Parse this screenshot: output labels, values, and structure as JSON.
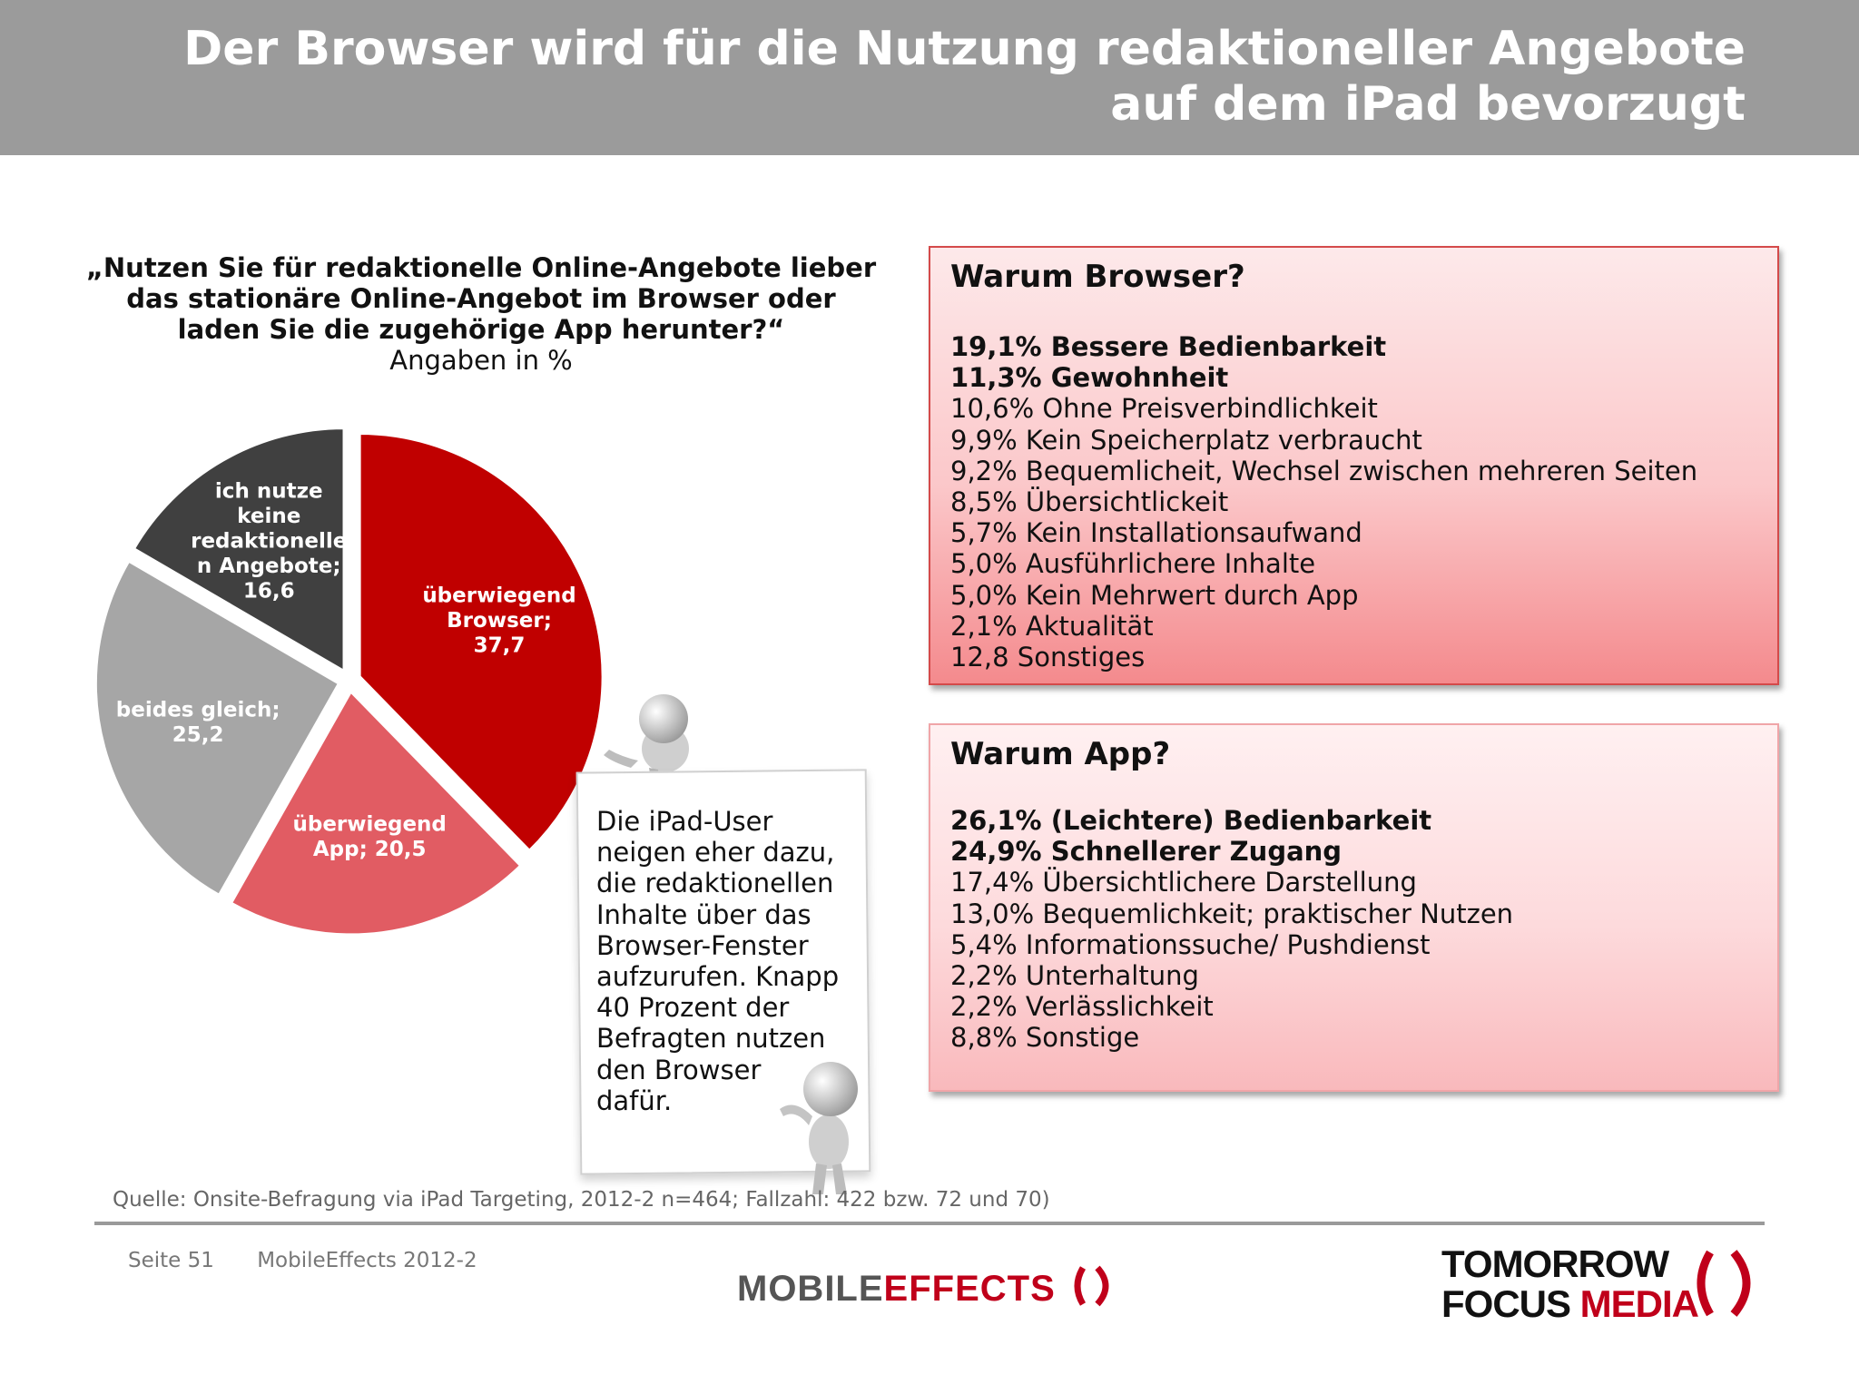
{
  "title": {
    "line1": "Der Browser wird für die Nutzung redaktioneller  Angebote",
    "line2": "auf dem iPad bevorzugt"
  },
  "question": {
    "text": "„Nutzen Sie für redaktionelle Online-Angebote lieber das stationäre Online-Angebot im Browser oder laden Sie die zugehörige App herunter?“",
    "unit": "Angaben in %"
  },
  "chart_data": {
    "type": "pie",
    "title": "„Nutzen Sie für redaktionelle Online-Angebote lieber das stationäre Online-Angebot im Browser oder laden Sie die zugehörige App herunter?“",
    "unit": "Angaben in %",
    "slices": [
      {
        "label": "überwiegend Browser;",
        "value": 37.7,
        "value_label": "37,7",
        "color": "#c00000",
        "label_lines": [
          "überwiegend",
          "Browser;",
          "37,7"
        ]
      },
      {
        "label": "überwiegend App;",
        "value": 20.5,
        "value_label": "20,5",
        "color": "#e15c63",
        "label_lines": [
          "überwiegend",
          "App; 20,5"
        ]
      },
      {
        "label": "beides gleich;",
        "value": 25.2,
        "value_label": "25,2",
        "color": "#a6a6a6",
        "label_lines": [
          "beides gleich;",
          "25,2"
        ]
      },
      {
        "label": "ich nutze keine redaktionellen Angebote;",
        "value": 16.6,
        "value_label": "16,6",
        "color": "#404040",
        "label_lines": [
          "ich nutze",
          "keine",
          "redaktionelle",
          "n Angebote;",
          "16,6"
        ]
      }
    ]
  },
  "browser_box": {
    "heading": "Warum Browser?",
    "items": [
      {
        "text": "19,1% Bessere Bedienbarkeit",
        "bold": true
      },
      {
        "text": "11,3% Gewohnheit",
        "bold": true
      },
      {
        "text": "10,6% Ohne Preisverbindlichkeit",
        "bold": false
      },
      {
        "text": "9,9% Kein Speicherplatz verbraucht",
        "bold": false
      },
      {
        "text": "9,2% Bequemlicheit, Wechsel zwischen mehreren Seiten",
        "bold": false
      },
      {
        "text": "8,5% Übersichtlickeit",
        "bold": false
      },
      {
        "text": "5,7% Kein Installationsaufwand",
        "bold": false
      },
      {
        "text": "5,0% Ausführlichere Inhalte",
        "bold": false
      },
      {
        "text": "5,0% Kein Mehrwert durch App",
        "bold": false
      },
      {
        "text": "2,1% Aktualität",
        "bold": false
      },
      {
        "text": "12,8 Sonstiges",
        "bold": false
      }
    ]
  },
  "app_box": {
    "heading": "Warum App?",
    "items": [
      {
        "text": "26,1% (Leichtere) Bedienbarkeit",
        "bold": true
      },
      {
        "text": "24,9% Schnellerer Zugang",
        "bold": true
      },
      {
        "text": "17,4% Übersichtlichere Darstellung",
        "bold": false
      },
      {
        "text": "13,0% Bequemlichkeit; praktischer Nutzen",
        "bold": false
      },
      {
        "text": "5,4% Informationssuche/ Pushdienst",
        "bold": false
      },
      {
        "text": "2,2% Unterhaltung",
        "bold": false
      },
      {
        "text": "2,2% Verlässlichkeit",
        "bold": false
      },
      {
        "text": "8,8% Sonstige",
        "bold": false
      }
    ]
  },
  "note": {
    "lines": [
      "Die iPad-User",
      "neigen eher dazu,",
      "die redaktionellen",
      "Inhalte über das",
      "Browser-Fenster",
      "aufzurufen. Knapp",
      "40 Prozent der",
      "Befragten nutzen",
      "den Browser",
      "dafür."
    ]
  },
  "source": "Quelle: Onsite-Befragung via iPad Targeting, 2012-2 n=464; Fallzahl: 422 bzw. 72 und 70)",
  "footer": {
    "page": "Seite 51",
    "study": "MobileEffects 2012-2"
  },
  "logos": {
    "mobile_effects": {
      "part1": "MOBILE",
      "part2": "EFFECTS"
    },
    "tfm": {
      "line1": "TOMORROW",
      "line2a": "FOCUS",
      "line2b": "MEDIA"
    }
  }
}
